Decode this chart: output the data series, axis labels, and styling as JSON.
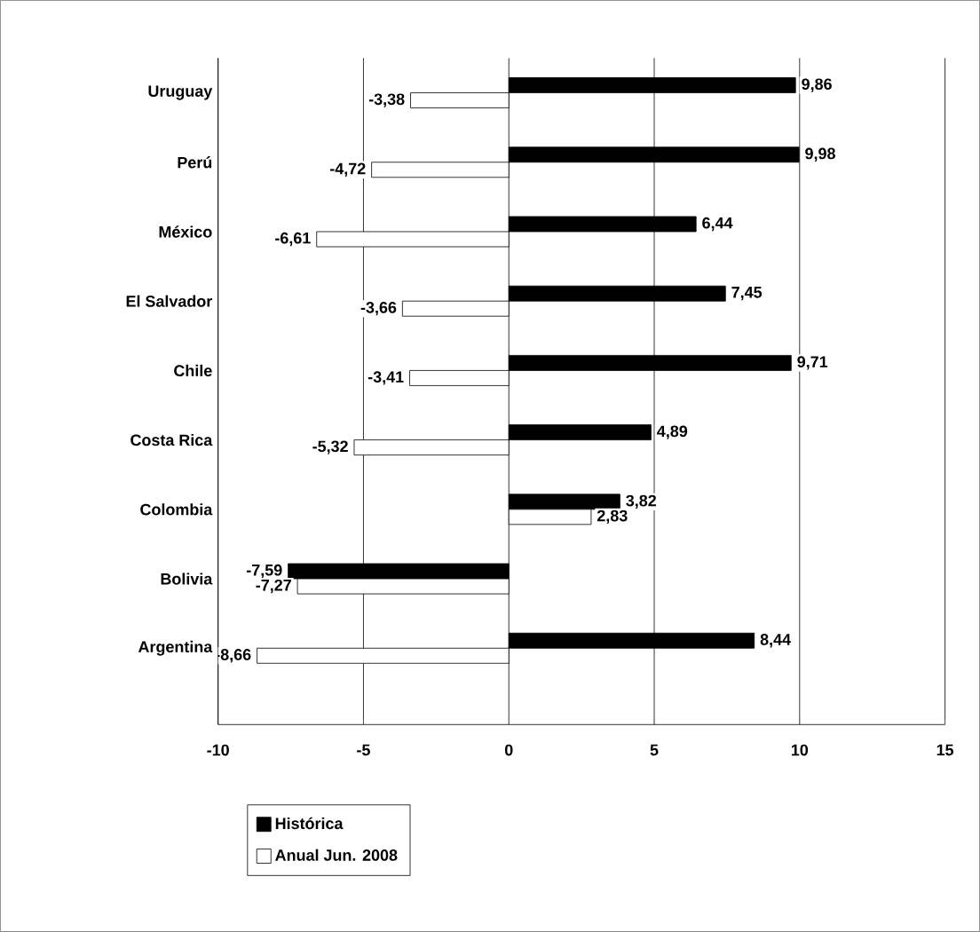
{
  "chart_data": {
    "type": "bar",
    "orientation": "horizontal",
    "categories": [
      "Uruguay",
      "Perú",
      "México",
      "El Salvador",
      "Chile",
      "Costa Rica",
      "Colombia",
      "Bolivia",
      "Argentina"
    ],
    "series": [
      {
        "name": "Histórica",
        "color": "#000000",
        "values": [
          9.86,
          9.98,
          6.44,
          7.45,
          9.71,
          4.89,
          3.82,
          -7.59,
          8.44
        ],
        "value_labels": [
          "9,86",
          "9,98",
          "6,44",
          "7,45",
          "9,71",
          "4,89",
          "3,82",
          "-7,59",
          "8,44"
        ]
      },
      {
        "name": "Anual  Jun. 2008",
        "color": "#ffffff",
        "values": [
          -3.38,
          -4.72,
          -6.61,
          -3.66,
          -3.41,
          -5.32,
          2.83,
          -7.27,
          -8.66
        ],
        "value_labels": [
          "-3,38",
          "-4,72",
          "-6,61",
          "-3,66",
          "-3,41",
          "-5,32",
          "2,83",
          "-7,27",
          "-8,66"
        ]
      }
    ],
    "xlim": [
      -10,
      15
    ],
    "xticks": [
      -10,
      -5,
      0,
      5,
      10,
      15
    ],
    "grid": "x",
    "legend": "bottom"
  }
}
